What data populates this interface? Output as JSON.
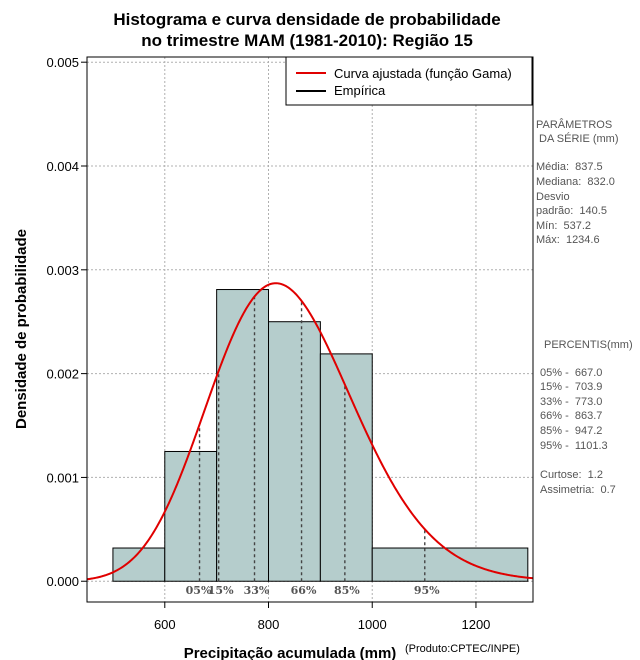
{
  "chart_data": {
    "type": "histogram",
    "title": [
      "Histograma e curva densidade de probabilidade",
      "no trimestre MAM (1981-2010): Região 15"
    ],
    "xlabel": "Precipitação acumulada (mm)",
    "ylabel": "Densidade de probabilidade",
    "credit": "(Produto:CPTEC/INPE)",
    "xlim": [
      450,
      1310
    ],
    "ylim": [
      -0.0002,
      0.00505
    ],
    "xticks": [
      600,
      800,
      1000,
      1200
    ],
    "yticks": [
      0.0,
      0.001,
      0.002,
      0.003,
      0.004,
      0.005
    ],
    "xtick_labels": [
      "600",
      "800",
      "1000",
      "1200"
    ],
    "ytick_labels": [
      "0.000",
      "0.001",
      "0.002",
      "0.003",
      "0.004",
      "0.005"
    ],
    "bins": [
      {
        "start": 500,
        "end": 600,
        "density": 0.00032
      },
      {
        "start": 600,
        "end": 700,
        "density": 0.00125
      },
      {
        "start": 700,
        "end": 800,
        "density": 0.00281
      },
      {
        "start": 800,
        "end": 900,
        "density": 0.0025
      },
      {
        "start": 900,
        "end": 1000,
        "density": 0.00219
      },
      {
        "start": 1000,
        "end": 1300,
        "density": 0.00032
      }
    ],
    "fitted_curve": {
      "name": "Curva ajustada (função Gama)",
      "distribution": "gamma",
      "shape": 35.5,
      "scale": 23.6,
      "color": "#e00000"
    },
    "empirical": {
      "name": "Empírica",
      "color": "#000000"
    },
    "legend": [
      "Curva ajustada (função Gama)",
      "Empírica"
    ],
    "percentiles": [
      {
        "label": "05%",
        "value": 667.0
      },
      {
        "label": "15%",
        "value": 703.9
      },
      {
        "label": "33%",
        "value": 773.0
      },
      {
        "label": "66%",
        "value": 863.7
      },
      {
        "label": "85%",
        "value": 947.2
      },
      {
        "label": "95%",
        "value": 1101.3
      }
    ],
    "bar_color": "#b5cdcc",
    "side_panel": {
      "params_title": [
        "PARÂMETROS",
        " DA SÉRIE (mm)"
      ],
      "params": [
        "Média:  837.5",
        "Mediana:  832.0",
        "Desvio",
        "padrão:  140.5",
        "Mín:  537.2",
        "Máx:  1234.6"
      ],
      "percentis_title": "PERCENTIS(mm)",
      "percentis": [
        "05% -  667.0",
        "15% -  703.9",
        "33% -  773.0",
        "66% -  863.7",
        "85% -  947.2",
        "95% -  1101.3"
      ],
      "extra": [
        "Curtose:  1.2",
        "Assimetria:  0.7"
      ]
    }
  }
}
